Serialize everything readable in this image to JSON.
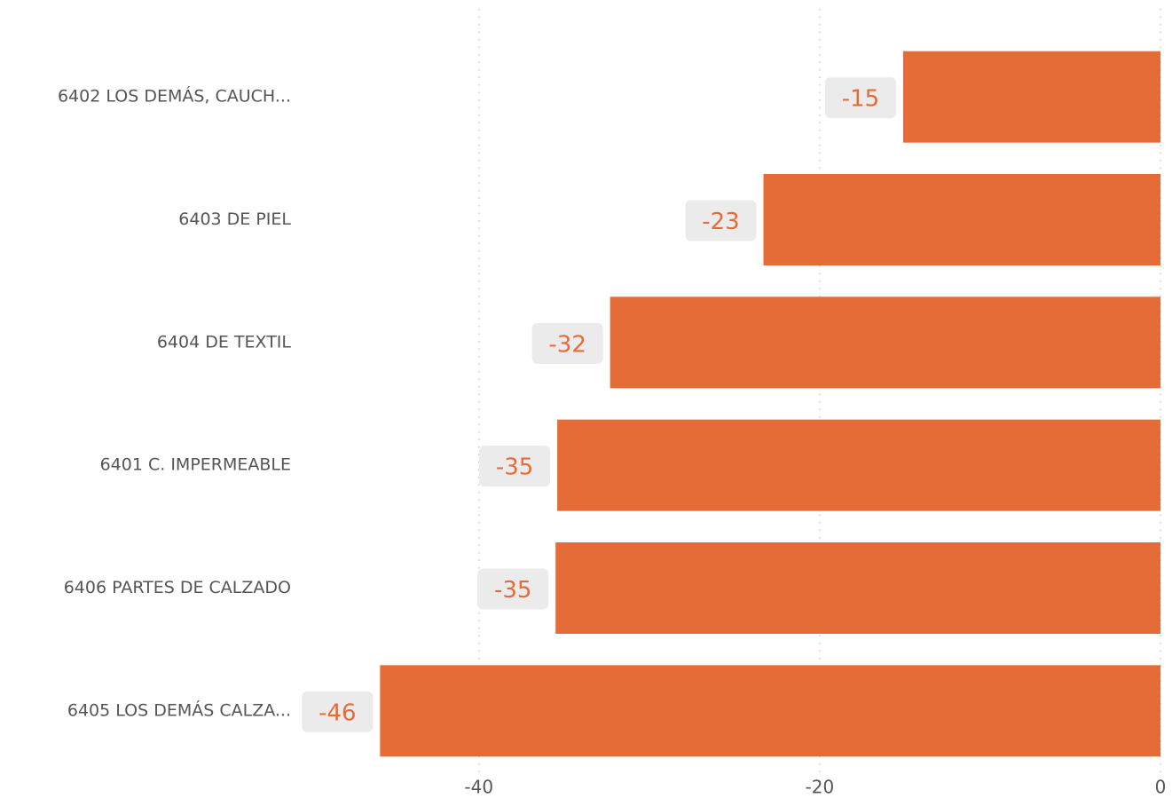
{
  "chart_data": {
    "type": "bar",
    "orientation": "horizontal",
    "categories": [
      "6402 LOS DEMÁS, CAUCH...",
      "6403 DE PIEL",
      "6404 DE TEXTIL",
      "6401 C. IMPERMEABLE",
      "6406 PARTES DE CALZADO",
      "6405 LOS DEMÁS CALZA..."
    ],
    "values": [
      -15.1,
      -23.3,
      -32.3,
      -35.4,
      -35.5,
      -45.8
    ],
    "value_labels": [
      "-15",
      "-23",
      "-32",
      "-35",
      "-35",
      "-46"
    ],
    "color": "#e66c37",
    "xlim": [
      -50.4,
      0
    ],
    "xticks": [
      -40,
      -20,
      0
    ],
    "grid": true
  }
}
